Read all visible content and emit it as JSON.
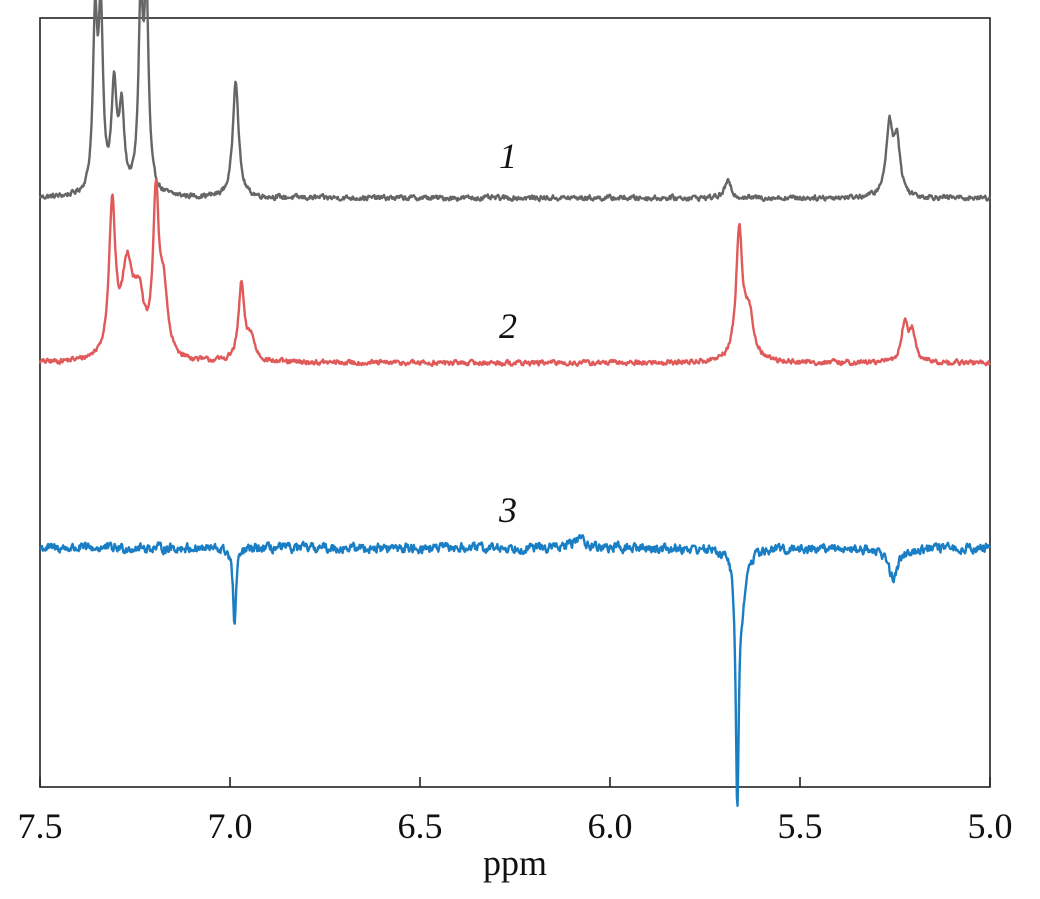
{
  "chart_data": {
    "type": "line",
    "title": "",
    "xlabel": "ppm",
    "ylabel": "",
    "xlim": [
      7.5,
      5.0
    ],
    "x_reversed": true,
    "x_ticks": [
      "7.5",
      "7.0",
      "6.5",
      "6.0",
      "5.5",
      "5.0"
    ],
    "x_tick_values": [
      7.5,
      7.0,
      6.5,
      6.0,
      5.5,
      5.0
    ],
    "y_axis_visible": false,
    "grid": false,
    "legend": "none",
    "series": [
      {
        "label": "1",
        "color": "#666666",
        "baseline": 0.0,
        "noise": 0.012,
        "peaks": [
          {
            "ppm": 7.355,
            "height": 0.5,
            "width": 0.007
          },
          {
            "ppm": 7.34,
            "height": 0.52,
            "width": 0.007
          },
          {
            "ppm": 7.305,
            "height": 0.31,
            "width": 0.008
          },
          {
            "ppm": 7.285,
            "height": 0.24,
            "width": 0.008
          },
          {
            "ppm": 7.235,
            "height": 0.55,
            "width": 0.007
          },
          {
            "ppm": 7.22,
            "height": 0.57,
            "width": 0.007
          },
          {
            "ppm": 6.985,
            "height": 0.36,
            "width": 0.009
          },
          {
            "ppm": 5.69,
            "height": 0.05,
            "width": 0.01
          },
          {
            "ppm": 5.265,
            "height": 0.21,
            "width": 0.01
          },
          {
            "ppm": 5.245,
            "height": 0.17,
            "width": 0.01
          }
        ]
      },
      {
        "label": "2",
        "color": "#e05a5a",
        "baseline": 0.0,
        "noise": 0.012,
        "peaks": [
          {
            "ppm": 7.31,
            "height": 0.45,
            "width": 0.01
          },
          {
            "ppm": 7.27,
            "height": 0.27,
            "width": 0.018
          },
          {
            "ppm": 7.24,
            "height": 0.16,
            "width": 0.015
          },
          {
            "ppm": 7.195,
            "height": 0.47,
            "width": 0.009
          },
          {
            "ppm": 7.175,
            "height": 0.2,
            "width": 0.012
          },
          {
            "ppm": 6.97,
            "height": 0.23,
            "width": 0.009
          },
          {
            "ppm": 6.945,
            "height": 0.07,
            "width": 0.012
          },
          {
            "ppm": 5.66,
            "height": 0.38,
            "width": 0.01
          },
          {
            "ppm": 5.635,
            "height": 0.14,
            "width": 0.015
          },
          {
            "ppm": 5.225,
            "height": 0.11,
            "width": 0.01
          },
          {
            "ppm": 5.205,
            "height": 0.09,
            "width": 0.01
          }
        ]
      },
      {
        "label": "3",
        "color": "#1a7ec4",
        "baseline": 0.0,
        "noise": 0.022,
        "peaks": [
          {
            "ppm": 6.988,
            "height": -0.23,
            "width": 0.005
          },
          {
            "ppm": 5.665,
            "height": -0.75,
            "width": 0.005
          },
          {
            "ppm": 5.65,
            "height": -0.12,
            "width": 0.012
          },
          {
            "ppm": 5.255,
            "height": -0.09,
            "width": 0.015
          },
          {
            "ppm": 6.08,
            "height": 0.03,
            "width": 0.02
          }
        ]
      }
    ]
  }
}
